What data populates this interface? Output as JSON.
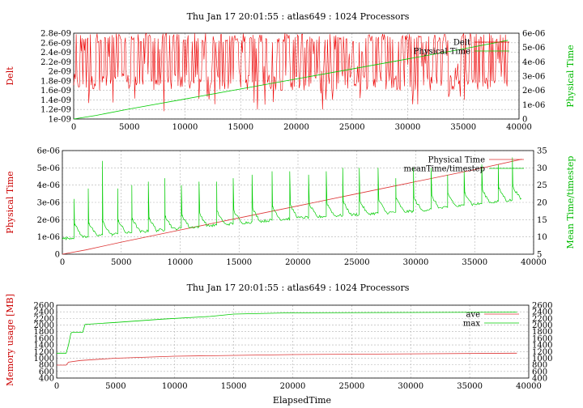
{
  "chart_data": [
    {
      "type": "line",
      "title": "Thu Jan 17 20:01:55 : atlas649 : 1024 Processors",
      "xlabel": "",
      "ylabel": "Delt",
      "y2label": "Physical Time",
      "xlim": [
        0,
        40000
      ],
      "ylim": [
        1e-09,
        2.8e-09
      ],
      "y2lim": [
        0,
        6e-06
      ],
      "x_ticks": [
        0,
        5000,
        10000,
        15000,
        20000,
        25000,
        30000,
        35000,
        40000
      ],
      "y_ticks": [
        1e-09,
        1.2e-09,
        1.4e-09,
        1.6e-09,
        1.8e-09,
        2e-09,
        2.2e-09,
        2.4e-09,
        2.6e-09,
        2.8e-09
      ],
      "y_tick_labels": [
        "1e-09",
        "1.2e-09",
        "1.4e-09",
        "1.6e-09",
        "1.8e-09",
        "2e-09",
        "2.2e-09",
        "2.4e-09",
        "2.6e-09",
        "2.8e-09"
      ],
      "y2_ticks": [
        0,
        1e-06,
        2e-06,
        3e-06,
        4e-06,
        5e-06,
        6e-06
      ],
      "y2_tick_labels": [
        "0",
        "1e-06",
        "2e-06",
        "3e-06",
        "4e-06",
        "5e-06",
        "6e-06"
      ],
      "grid": true,
      "legend_position": "top-right",
      "series": [
        {
          "name": "Delt",
          "axis": "left",
          "color": "#ee0000",
          "x": [
            0,
            39000
          ],
          "values": [
            1.95e-09,
            2.7e-09
          ],
          "pattern": "oscillating between 1.6e-9 and 2.8e-9 with occasional dips toward 1.15e-9"
        },
        {
          "name": "Physical Time",
          "axis": "right",
          "color": "#00cc00",
          "x": [
            0,
            2000,
            5000,
            10000,
            15000,
            20000,
            25000,
            30000,
            35000,
            39000
          ],
          "values": [
            0,
            2.5e-07,
            7e-07,
            1.4e-06,
            2.1e-06,
            2.8e-06,
            3.5e-06,
            4.2e-06,
            4.9e-06,
            5.5e-06
          ]
        }
      ]
    },
    {
      "type": "line",
      "title": "",
      "xlabel": "",
      "ylabel": "Physical Time",
      "y2label": "Mean Time/timestep",
      "xlim": [
        0,
        40000
      ],
      "ylim": [
        0,
        6e-06
      ],
      "y2lim": [
        5,
        35
      ],
      "x_ticks": [
        0,
        5000,
        10000,
        15000,
        20000,
        25000,
        30000,
        35000,
        40000
      ],
      "y_ticks": [
        0,
        1e-06,
        2e-06,
        3e-06,
        4e-06,
        5e-06,
        6e-06
      ],
      "y_tick_labels": [
        "0",
        "1e-06",
        "2e-06",
        "3e-06",
        "4e-06",
        "5e-06",
        "6e-06"
      ],
      "y2_ticks": [
        5,
        10,
        15,
        20,
        25,
        30,
        35
      ],
      "grid": true,
      "legend_position": "top-right",
      "series": [
        {
          "name": "Physical Time",
          "axis": "left",
          "color": "#dd3333",
          "x": [
            0,
            2000,
            5000,
            10000,
            15000,
            20000,
            25000,
            30000,
            35000,
            39000
          ],
          "values": [
            0,
            2.5e-07,
            7e-07,
            1.4e-06,
            2.1e-06,
            2.8e-06,
            3.5e-06,
            4.2e-06,
            4.9e-06,
            5.5e-06
          ]
        },
        {
          "name": "meanTime/timestep",
          "axis": "right",
          "color": "#00cc00",
          "spikes": [
            {
              "x": 1000,
              "value": 21
            },
            {
              "x": 2200,
              "value": 24
            },
            {
              "x": 3400,
              "value": 32
            },
            {
              "x": 4700,
              "value": 24
            },
            {
              "x": 5900,
              "value": 25
            },
            {
              "x": 7300,
              "value": 26
            },
            {
              "x": 8700,
              "value": 27
            },
            {
              "x": 10100,
              "value": 25
            },
            {
              "x": 11600,
              "value": 26
            },
            {
              "x": 13100,
              "value": 26
            },
            {
              "x": 14500,
              "value": 27
            },
            {
              "x": 16100,
              "value": 28
            },
            {
              "x": 17800,
              "value": 29
            },
            {
              "x": 19300,
              "value": 29
            },
            {
              "x": 20900,
              "value": 28
            },
            {
              "x": 22400,
              "value": 29
            },
            {
              "x": 23800,
              "value": 30
            },
            {
              "x": 25200,
              "value": 30
            },
            {
              "x": 26800,
              "value": 30
            },
            {
              "x": 28300,
              "value": 27
            },
            {
              "x": 29800,
              "value": 30
            },
            {
              "x": 31300,
              "value": 30
            },
            {
              "x": 32700,
              "value": 28
            },
            {
              "x": 34100,
              "value": 29
            },
            {
              "x": 35600,
              "value": 31
            },
            {
              "x": 37000,
              "value": 31
            },
            {
              "x": 38200,
              "value": 33
            }
          ],
          "baseline_x": [
            0,
            10000,
            20000,
            30000,
            39000
          ],
          "baseline_values": [
            9.5,
            12.5,
            15.5,
            17.5,
            21
          ]
        }
      ]
    },
    {
      "type": "line",
      "title": "Thu Jan 17 20:01:55 : atlas649 : 1024 Processors",
      "xlabel": "ElapsedTime",
      "ylabel": "Memory usage [MB]",
      "xlim": [
        0,
        40000
      ],
      "ylim": [
        400,
        2600
      ],
      "x_ticks": [
        0,
        5000,
        10000,
        15000,
        20000,
        25000,
        30000,
        35000,
        40000
      ],
      "y_ticks": [
        400,
        600,
        800,
        1000,
        1200,
        1400,
        1600,
        1800,
        2000,
        2200,
        2400,
        2600
      ],
      "grid": true,
      "legend_position": "top-right",
      "series": [
        {
          "name": "ave",
          "color": "#dd3333",
          "x": [
            0,
            800,
            1000,
            2000,
            5000,
            10000,
            20000,
            30000,
            39000
          ],
          "values": [
            790,
            790,
            880,
            930,
            1000,
            1060,
            1110,
            1130,
            1150
          ]
        },
        {
          "name": "max",
          "color": "#00cc00",
          "x": [
            0,
            800,
            1000,
            1200,
            1300,
            2200,
            2400,
            5000,
            9000,
            13000,
            15000,
            20000,
            30000,
            39000
          ],
          "values": [
            1150,
            1150,
            1400,
            1750,
            1780,
            1780,
            2020,
            2080,
            2180,
            2260,
            2330,
            2370,
            2380,
            2390
          ]
        }
      ]
    }
  ]
}
